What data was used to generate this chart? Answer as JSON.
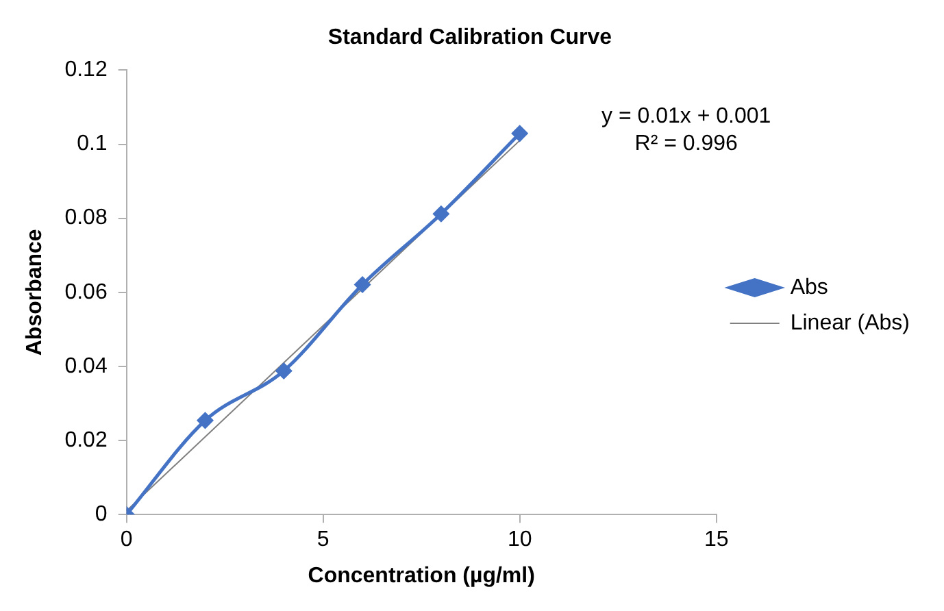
{
  "chart_data": {
    "type": "line",
    "title": "Standard Calibration Curve",
    "xlabel": "Concentration (µg/ml)",
    "ylabel": "Absorbance",
    "annotations": [
      "y = 0.01x + 0.001",
      "R² = 0.996"
    ],
    "series": [
      {
        "name": "Abs",
        "color": "#4472c4",
        "x": [
          0,
          2,
          4,
          6,
          8,
          10
        ],
        "values": [
          0,
          0.0254,
          0.0388,
          0.0621,
          0.0812,
          0.1029
        ],
        "marker": "diamond"
      },
      {
        "name": "Linear (Abs)",
        "color": "#808080",
        "x": [
          0,
          10
        ],
        "values": [
          0.001,
          0.101
        ],
        "marker": "none"
      }
    ],
    "xlim": [
      0,
      15
    ],
    "xticks": [
      0,
      5,
      10,
      15
    ],
    "ylim": [
      0,
      0.12
    ],
    "yticks": [
      0,
      0.02,
      0.04,
      0.06,
      0.08,
      0.1,
      0.12
    ],
    "grid": false,
    "legend": "right",
    "line_style": "solid"
  }
}
